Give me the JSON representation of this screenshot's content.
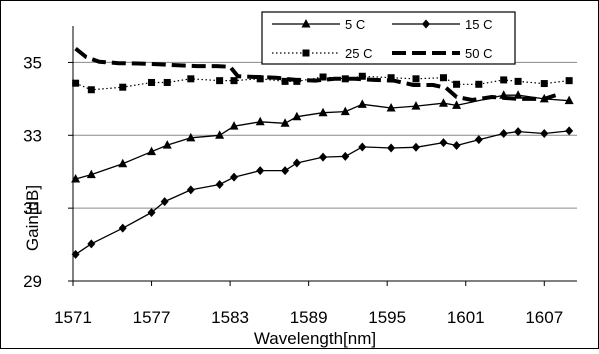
{
  "chart_data": {
    "type": "line",
    "title": "",
    "xlabel": "Wavelength[nm]",
    "ylabel": "Gain[dB]",
    "xlim": [
      1571,
      1609.5
    ],
    "ylim": [
      29,
      36
    ],
    "xticks": [
      "1571",
      "1577",
      "1583",
      "1589",
      "1595",
      "1601",
      "1607"
    ],
    "yticks": [
      "29",
      "31",
      "33",
      "35"
    ],
    "grid": "horizontal",
    "legend_position": "top-right",
    "series": [
      {
        "name": "5 C",
        "line": "solid",
        "marker": "triangle",
        "x": [
          1571.2,
          1572.4,
          1574.8,
          1577.0,
          1578.2,
          1580.0,
          1582.2,
          1583.3,
          1585.3,
          1587.2,
          1588.1,
          1590.1,
          1591.8,
          1593.1,
          1595.3,
          1597.2,
          1599.3,
          1600.3,
          1603.9,
          1605.0,
          1607.0,
          1608.9
        ],
        "values": [
          31.8,
          31.92,
          32.22,
          32.55,
          32.73,
          32.93,
          33.0,
          33.25,
          33.37,
          33.33,
          33.51,
          33.62,
          33.65,
          33.85,
          33.75,
          33.8,
          33.88,
          33.82,
          34.1,
          34.1,
          34.0,
          33.95
        ]
      },
      {
        "name": "15 C",
        "line": "solid",
        "marker": "diamond",
        "x": [
          1571.2,
          1572.4,
          1574.8,
          1577.0,
          1578.0,
          1580.0,
          1582.2,
          1583.3,
          1585.3,
          1587.2,
          1588.1,
          1590.1,
          1591.8,
          1593.1,
          1595.3,
          1597.2,
          1599.3,
          1600.3,
          1602.0,
          1603.9,
          1605.0,
          1607.0,
          1608.9
        ],
        "values": [
          29.73,
          30.02,
          30.45,
          30.88,
          31.18,
          31.5,
          31.65,
          31.85,
          32.03,
          32.03,
          32.24,
          32.4,
          32.42,
          32.68,
          32.65,
          32.67,
          32.8,
          32.72,
          32.88,
          33.05,
          33.1,
          33.05,
          33.12
        ]
      },
      {
        "name": "25 C",
        "line": "dotted",
        "marker": "square",
        "x": [
          1571.2,
          1572.4,
          1574.8,
          1577.0,
          1578.2,
          1580.0,
          1582.2,
          1583.3,
          1585.3,
          1587.2,
          1588.1,
          1590.1,
          1591.8,
          1593.1,
          1595.3,
          1597.2,
          1599.3,
          1600.3,
          1602.0,
          1603.9,
          1605.0,
          1607.0,
          1608.9
        ],
        "values": [
          34.43,
          34.25,
          34.32,
          34.45,
          34.45,
          34.55,
          34.5,
          34.5,
          34.55,
          34.48,
          34.48,
          34.6,
          34.55,
          34.62,
          34.58,
          34.55,
          34.58,
          34.4,
          34.4,
          34.52,
          34.48,
          34.42,
          34.5
        ]
      },
      {
        "name": "50 C",
        "line": "dashed",
        "marker": "none",
        "x": [
          1571.2,
          1572.0,
          1573.0,
          1574.5,
          1576.0,
          1577.5,
          1579.0,
          1580.5,
          1582.0,
          1583.0,
          1583.6,
          1585.0,
          1586.5,
          1588.0,
          1589.5,
          1591.0,
          1592.5,
          1594.0,
          1595.5,
          1597.0,
          1598.5,
          1599.5,
          1600.3,
          1601.5,
          1603.0,
          1605.0,
          1607.0,
          1608.3
        ],
        "values": [
          35.38,
          35.15,
          35.02,
          34.98,
          34.97,
          34.95,
          34.92,
          34.9,
          34.9,
          34.88,
          34.62,
          34.6,
          34.58,
          34.52,
          34.5,
          34.55,
          34.55,
          34.52,
          34.5,
          34.38,
          34.38,
          34.3,
          34.05,
          33.97,
          34.05,
          34.0,
          34.0,
          34.15
        ]
      }
    ]
  }
}
